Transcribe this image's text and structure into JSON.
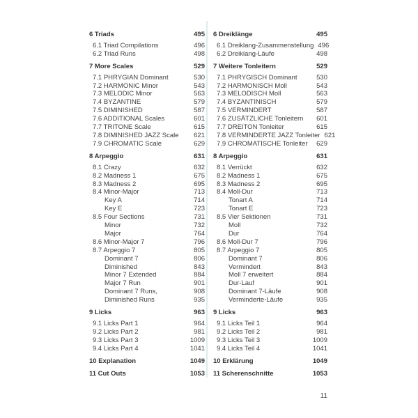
{
  "colors": {
    "background": "#ffffff",
    "text": "#414141",
    "heading_text": "#333333",
    "divider": "#ddecee"
  },
  "footer": {
    "page_number": "11"
  },
  "columns": [
    {
      "name": "english",
      "entries": [
        {
          "label": "6 Triads",
          "page": "495",
          "level": 0
        },
        {
          "label": "6.1 Triad Compilations",
          "page": "496",
          "level": 1
        },
        {
          "label": "6.2 Triad Runs",
          "page": "498",
          "level": 1
        },
        {
          "label": "7 More Scales",
          "page": "529",
          "level": 0
        },
        {
          "label": "7.1 PHRYGIAN Dominant",
          "page": "530",
          "level": 1
        },
        {
          "label": "7.2 HARMONIC Minor",
          "page": "543",
          "level": 1
        },
        {
          "label": "7.3 MELODIC Minor",
          "page": "563",
          "level": 1
        },
        {
          "label": "7.4 BYZANTINE",
          "page": "579",
          "level": 1
        },
        {
          "label": "7.5 DIMINISHED",
          "page": "587",
          "level": 1
        },
        {
          "label": "7.6 ADDITIONAL Scales",
          "page": "601",
          "level": 1
        },
        {
          "label": "7.7 TRITONE Scale",
          "page": "615",
          "level": 1
        },
        {
          "label": "7.8 DIMINISHED JAZZ Scale",
          "page": "621",
          "level": 1
        },
        {
          "label": "7.9 CHROMATIC Scale",
          "page": "629",
          "level": 1
        },
        {
          "label": "8 Arpeggio",
          "page": "631",
          "level": 0
        },
        {
          "label": "8.1 Crazy",
          "page": "632",
          "level": 1
        },
        {
          "label": "8.2 Madness 1",
          "page": "675",
          "level": 1
        },
        {
          "label": "8.3 Madness 2",
          "page": "695",
          "level": 1
        },
        {
          "label": "8.4 Minor-Major",
          "page": "713",
          "level": 1
        },
        {
          "label": "Key A",
          "page": "714",
          "level": 2
        },
        {
          "label": "Key E",
          "page": "723",
          "level": 2
        },
        {
          "label": "8.5 Four Sections",
          "page": "731",
          "level": 1
        },
        {
          "label": "Minor",
          "page": "732",
          "level": 2
        },
        {
          "label": "Major",
          "page": "764",
          "level": 2
        },
        {
          "label": "8.6 Minor-Major 7",
          "page": "796",
          "level": 1
        },
        {
          "label": "8.7 Arpeggio 7",
          "page": "805",
          "level": 1
        },
        {
          "label": "Dominant 7",
          "page": "806",
          "level": 2
        },
        {
          "label": "Diminished",
          "page": "843",
          "level": 2
        },
        {
          "label": "Minor 7 Extended",
          "page": "884",
          "level": 2
        },
        {
          "label": "Major 7 Run",
          "page": "901",
          "level": 2
        },
        {
          "label": "Dominant 7 Runs,",
          "page": "908",
          "level": 2
        },
        {
          "label": "Diminished Runs",
          "page": "935",
          "level": 2
        },
        {
          "label": "9 Licks",
          "page": "963",
          "level": 0
        },
        {
          "label": "9.1 Licks Part 1",
          "page": "964",
          "level": 1
        },
        {
          "label": "9.2 Licks Part 2",
          "page": "981",
          "level": 1
        },
        {
          "label": "9.3 Licks Part 3",
          "page": "1009",
          "level": 1
        },
        {
          "label": "9.4 Licks Part 4",
          "page": "1041",
          "level": 1
        },
        {
          "label": "10 Explanation",
          "page": "1049",
          "level": 0
        },
        {
          "label": "11 Cut Outs",
          "page": "1053",
          "level": 0
        }
      ]
    },
    {
      "name": "german",
      "entries": [
        {
          "label": "6 Dreiklänge",
          "page": "495",
          "level": 0
        },
        {
          "label": "6.1 Dreiklang-Zusammenstellung",
          "page": "496",
          "level": 1
        },
        {
          "label": "6.2 Dreiklang-Läufe",
          "page": "498",
          "level": 1
        },
        {
          "label": "7 Weitere Tonleitern",
          "page": "529",
          "level": 0
        },
        {
          "label": "7.1 PHRYGISCH Dominant",
          "page": "530",
          "level": 1
        },
        {
          "label": "7.2 HARMONISCH Moll",
          "page": "543",
          "level": 1
        },
        {
          "label": "7.3 MELODISCH Moll",
          "page": "563",
          "level": 1
        },
        {
          "label": "7.4 BYZANTINISCH",
          "page": "579",
          "level": 1
        },
        {
          "label": "7.5 VERMINDERT",
          "page": "587",
          "level": 1
        },
        {
          "label": "7.6 ZUSÄTZLICHE Tonleitern",
          "page": "601",
          "level": 1
        },
        {
          "label": "7.7 DREITON Tonleiter",
          "page": "615",
          "level": 1
        },
        {
          "label": "7.8 VERMINDERTE JAZZ Tonleiter",
          "page": "621",
          "level": 1
        },
        {
          "label": "7.9 CHROMATISCHE Tonleiter",
          "page": "629",
          "level": 1
        },
        {
          "label": "8 Arpeggio",
          "page": "631",
          "level": 0
        },
        {
          "label": "8.1 Verrückt",
          "page": "632",
          "level": 1
        },
        {
          "label": "8.2 Madness 1",
          "page": "675",
          "level": 1
        },
        {
          "label": "8.3 Madness 2",
          "page": "695",
          "level": 1
        },
        {
          "label": "8.4 Moll-Dur",
          "page": "713",
          "level": 1
        },
        {
          "label": "Tonart A",
          "page": "714",
          "level": 2
        },
        {
          "label": "Tonart E",
          "page": "723",
          "level": 2
        },
        {
          "label": "8.5 Vier Sektionen",
          "page": "731",
          "level": 1
        },
        {
          "label": "Moll",
          "page": "732",
          "level": 2
        },
        {
          "label": "Dur",
          "page": "764",
          "level": 2
        },
        {
          "label": "8.6 Moll-Dur 7",
          "page": "796",
          "level": 1
        },
        {
          "label": "8.7 Arpeggio 7",
          "page": "805",
          "level": 1
        },
        {
          "label": "Dominant 7",
          "page": "806",
          "level": 2
        },
        {
          "label": "Vermindert",
          "page": "843",
          "level": 2
        },
        {
          "label": "Moll 7 erweitert",
          "page": "884",
          "level": 2
        },
        {
          "label": "Dur-Lauf",
          "page": "901",
          "level": 2
        },
        {
          "label": "Dominant 7-Läufe",
          "page": "908",
          "level": 2
        },
        {
          "label": "Verminderte-Läufe",
          "page": "935",
          "level": 2
        },
        {
          "label": "9 Licks",
          "page": "963",
          "level": 0
        },
        {
          "label": "9.1 Licks Teil 1",
          "page": "964",
          "level": 1
        },
        {
          "label": "9.2 Licks Teil 2",
          "page": "981",
          "level": 1
        },
        {
          "label": "9.3 Licks Teil 3",
          "page": "1009",
          "level": 1
        },
        {
          "label": "9.4 Licks Teil 4",
          "page": "1041",
          "level": 1
        },
        {
          "label": "10 Erklärung",
          "page": "1049",
          "level": 0
        },
        {
          "label": "11 Scherenschnitte",
          "page": "1053",
          "level": 0
        }
      ]
    }
  ]
}
